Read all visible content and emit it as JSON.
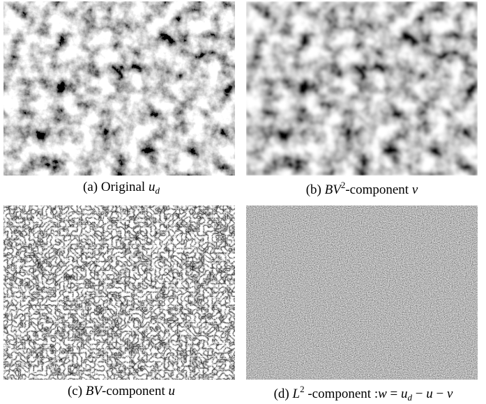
{
  "figure": {
    "panels": [
      {
        "caption": [
          {
            "text": "(a) ",
            "style": "normal"
          },
          {
            "text": "Original ",
            "style": "normal"
          },
          {
            "text": "u",
            "style": "italic"
          },
          {
            "text": "d",
            "style": "sub"
          }
        ]
      },
      {
        "caption": [
          {
            "text": "(b) ",
            "style": "normal"
          },
          {
            "text": "BV",
            "style": "italic"
          },
          {
            "text": "2",
            "style": "sup"
          },
          {
            "text": "-component ",
            "style": "normal"
          },
          {
            "text": "v",
            "style": "italic"
          }
        ]
      },
      {
        "caption": [
          {
            "text": "(c) ",
            "style": "normal"
          },
          {
            "text": "BV",
            "style": "italic"
          },
          {
            "text": "-component ",
            "style": "normal"
          },
          {
            "text": "u",
            "style": "italic"
          }
        ]
      },
      {
        "caption": [
          {
            "text": "(d) ",
            "style": "normal"
          },
          {
            "text": "L",
            "style": "italic"
          },
          {
            "text": "2",
            "style": "sup"
          },
          {
            "text": " -component :",
            "style": "normal"
          },
          {
            "text": "w",
            "style": "italic"
          },
          {
            "text": " = ",
            "style": "normal"
          },
          {
            "text": "u",
            "style": "italic"
          },
          {
            "text": "d",
            "style": "sub"
          },
          {
            "text": " − ",
            "style": "normal"
          },
          {
            "text": "u",
            "style": "italic"
          },
          {
            "text": " − ",
            "style": "normal"
          },
          {
            "text": "v",
            "style": "italic"
          }
        ]
      }
    ]
  }
}
